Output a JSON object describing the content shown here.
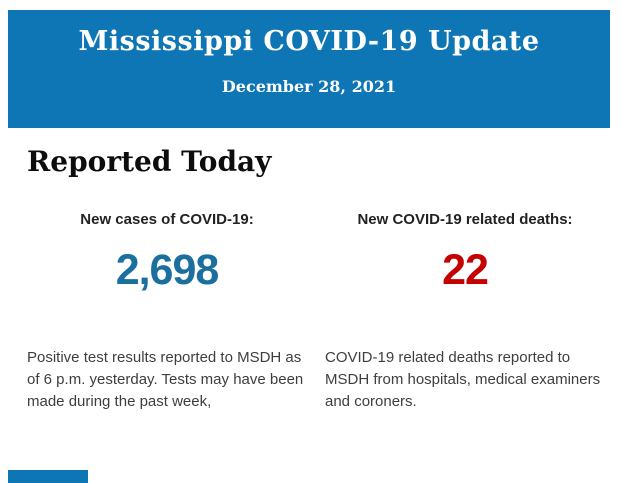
{
  "header": {
    "title": "Mississippi COVID-19 Update",
    "date": "December 28, 2021",
    "background": "#0e76b4",
    "text_color": "#ffffff"
  },
  "section": {
    "heading": "Reported Today"
  },
  "stats": {
    "cases": {
      "label": "New cases of COVID-19:",
      "value": "2,698",
      "value_color": "#1b6f9e",
      "description": "Positive test results reported to MSDH as of 6 p.m. yesterday. Tests may have been made during the past week,"
    },
    "deaths": {
      "label": "New COVID-19 related deaths:",
      "value": "22",
      "value_color": "#c40000",
      "description": "COVID-19 related deaths reported to MSDH from hospitals, medical examiners and coroners."
    }
  },
  "footer": {
    "partial_banner_color": "#0e76b4"
  }
}
